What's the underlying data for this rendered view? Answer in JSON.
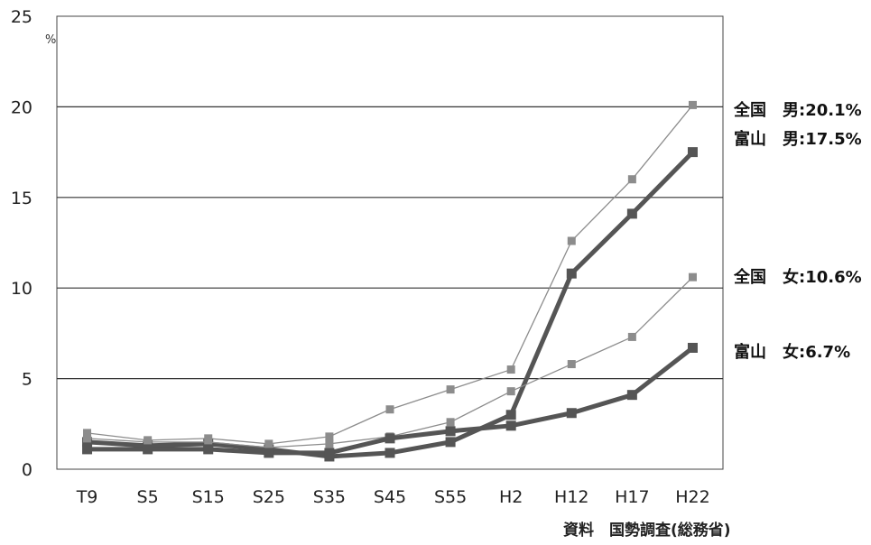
{
  "chart_data": {
    "type": "line",
    "unit_label": "%",
    "x": [
      "T9",
      "S5",
      "S15",
      "S25",
      "S35",
      "S45",
      "S55",
      "H2",
      "H12",
      "H17",
      "H22"
    ],
    "ylim": [
      0,
      25
    ],
    "yticks": [
      "0",
      "5",
      "10",
      "15",
      "20",
      "25"
    ],
    "grid": "horizontal",
    "series": [
      {
        "name": "全国　男",
        "end_label": "全国　男:20.1%",
        "color": "#8c8c8c",
        "weight": "thin",
        "values": [
          2.0,
          1.6,
          1.7,
          1.4,
          1.8,
          3.3,
          4.4,
          5.5,
          12.6,
          16.0,
          20.1
        ]
      },
      {
        "name": "富山　男",
        "end_label": "富山　男:17.5%",
        "color": "#555555",
        "weight": "thick",
        "values": [
          1.5,
          1.3,
          1.4,
          1.1,
          0.7,
          0.9,
          1.5,
          3.0,
          10.8,
          14.1,
          17.5
        ]
      },
      {
        "name": "全国　女",
        "end_label": "全国　女:10.6%",
        "color": "#8c8c8c",
        "weight": "thin",
        "values": [
          1.7,
          1.5,
          1.5,
          1.2,
          1.4,
          1.8,
          2.6,
          4.3,
          5.8,
          7.3,
          10.6
        ]
      },
      {
        "name": "富山　女",
        "end_label": "富山　女:6.7%",
        "color": "#555555",
        "weight": "thick",
        "values": [
          1.1,
          1.1,
          1.1,
          0.9,
          0.9,
          1.7,
          2.1,
          2.4,
          3.1,
          4.1,
          6.7
        ]
      }
    ]
  },
  "source_note": "資料　国勢調査(総務省)"
}
